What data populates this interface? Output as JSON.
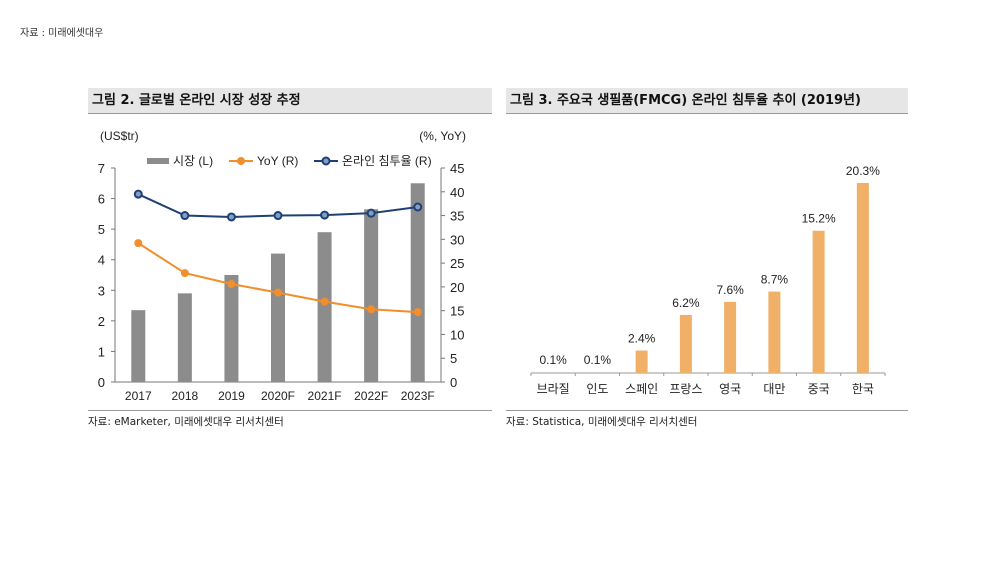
{
  "top_source": "자료 : 미래에셋대우",
  "left": {
    "title": "그림 2. 글로벌 온라인 시장 성장 추정",
    "source": "자료: eMarketer, 미래에셋대우 리서치센터"
  },
  "right": {
    "title": "그림 3. 주요국 생필품(FMCG) 온라인 침투율 추이 (2019년)",
    "source": "자료: Statistica, 미래에셋대우 리서치센터"
  },
  "chart_data": [
    {
      "type": "bar+line",
      "categories": [
        "2017",
        "2018",
        "2019",
        "2020F",
        "2021F",
        "2022F",
        "2023F"
      ],
      "ylabel_left": "(US$tr)",
      "ylabel_right": "(%, YoY)",
      "ylim_left": [
        0,
        7
      ],
      "ylim_right": [
        0,
        45
      ],
      "yticks_left": [
        "0",
        "1",
        "2",
        "3",
        "4",
        "5",
        "6",
        "7"
      ],
      "yticks_right": [
        "0",
        "5",
        "10",
        "15",
        "20",
        "25",
        "30",
        "35",
        "40",
        "45"
      ],
      "series": [
        {
          "name": "시장 (L)",
          "type": "bar",
          "axis": "left",
          "color": "#8c8c8c",
          "values": [
            2.35,
            2.9,
            3.5,
            4.2,
            4.9,
            5.65,
            6.5
          ]
        },
        {
          "name": "YoY (R)",
          "type": "line",
          "axis": "right",
          "color": "#f28e2b",
          "values": [
            29.2,
            22.9,
            20.6,
            18.8,
            16.9,
            15.3,
            14.7
          ]
        },
        {
          "name": "온라인 침투율 (R)",
          "type": "line",
          "axis": "right",
          "color": "#1f3f75",
          "values": [
            39.5,
            35.0,
            34.7,
            35.0,
            35.1,
            35.5,
            36.8
          ]
        }
      ]
    },
    {
      "type": "bar",
      "categories": [
        "브라질",
        "인도",
        "스페인",
        "프랑스",
        "영국",
        "대만",
        "중국",
        "한국"
      ],
      "values": [
        0.1,
        0.1,
        2.4,
        6.2,
        7.6,
        8.7,
        15.2,
        20.3
      ],
      "labels": [
        "0.1%",
        "0.1%",
        "2.4%",
        "6.2%",
        "7.6%",
        "8.7%",
        "15.2%",
        "20.3%"
      ],
      "color": "#f0b068",
      "unit": "%"
    }
  ]
}
